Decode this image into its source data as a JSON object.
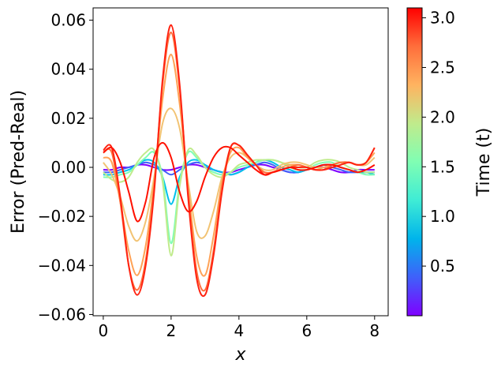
{
  "chart_data": {
    "type": "line",
    "xlabel": "x",
    "ylabel": "Error (Pred-Real)",
    "xlim": [
      -0.3,
      8.4
    ],
    "ylim": [
      -0.0605,
      0.065
    ],
    "xticks": [
      0,
      2,
      4,
      6,
      8
    ],
    "xtick_labels": [
      "0",
      "2",
      "4",
      "6",
      "8"
    ],
    "yticks": [
      -0.06,
      -0.04,
      -0.02,
      0.0,
      0.02,
      0.04,
      0.06
    ],
    "ytick_labels": [
      "−0.06",
      "−0.04",
      "−0.02",
      "0.00",
      "0.02",
      "0.04",
      "0.06"
    ],
    "x_sample": [
      0,
      0.25,
      0.5,
      0.75,
      1.0,
      1.25,
      1.5,
      1.75,
      2.0,
      2.25,
      2.5,
      2.75,
      3.0,
      3.25,
      3.5,
      3.75,
      4.0,
      4.25,
      4.5,
      4.75,
      5.0,
      5.25,
      5.5,
      5.75,
      6.0,
      6.25,
      6.5,
      6.75,
      7.0,
      7.25,
      7.5,
      7.75,
      8.0
    ],
    "series": [
      {
        "t": 0.1,
        "color": "#7f00ff",
        "values": [
          -0.001,
          -0.001,
          0.0,
          0.0,
          0.001,
          0.001,
          0.0,
          -0.001,
          -0.001,
          0.0,
          0.001,
          0.001,
          0.0,
          -0.001,
          -0.002,
          -0.002,
          -0.001,
          0.0,
          0.001,
          0.001,
          0.0,
          -0.001,
          -0.002,
          -0.002,
          -0.001,
          0.0,
          0.0,
          -0.001,
          -0.002,
          -0.002,
          -0.001,
          -0.001,
          -0.001
        ]
      },
      {
        "t": 0.5,
        "color": "#3f60fa",
        "values": [
          -0.002,
          -0.002,
          -0.001,
          0.0,
          0.001,
          0.002,
          0.001,
          -0.001,
          -0.003,
          -0.001,
          0.001,
          0.002,
          0.001,
          -0.001,
          -0.002,
          -0.003,
          -0.002,
          0.0,
          0.001,
          0.002,
          0.001,
          -0.001,
          -0.002,
          -0.002,
          -0.001,
          0.0,
          0.001,
          0.0,
          -0.001,
          -0.002,
          -0.002,
          -0.002,
          -0.002
        ]
      },
      {
        "t": 1.0,
        "color": "#00c0eb",
        "values": [
          -0.003,
          -0.003,
          -0.002,
          -0.001,
          0.001,
          0.003,
          0.002,
          -0.004,
          -0.015,
          -0.004,
          0.002,
          0.003,
          0.001,
          -0.001,
          -0.002,
          -0.003,
          -0.002,
          0.0,
          0.002,
          0.003,
          0.002,
          0.0,
          -0.001,
          -0.002,
          -0.001,
          0.0,
          0.001,
          0.001,
          0.0,
          -0.001,
          -0.002,
          -0.002,
          -0.003
        ]
      },
      {
        "t": 1.5,
        "color": "#80feb3",
        "values": [
          -0.004,
          -0.004,
          -0.003,
          -0.002,
          0.001,
          0.004,
          0.006,
          -0.004,
          -0.031,
          -0.006,
          0.006,
          0.004,
          0.0,
          -0.002,
          -0.003,
          -0.002,
          0.0,
          0.001,
          0.002,
          0.003,
          0.003,
          0.002,
          0.0,
          -0.001,
          -0.001,
          0.001,
          0.002,
          0.002,
          0.0,
          -0.001,
          -0.002,
          -0.003,
          -0.003
        ]
      },
      {
        "t": 2.0,
        "color": "#c0eb8c",
        "values": [
          -0.002,
          -0.005,
          -0.006,
          -0.004,
          0.002,
          0.006,
          0.007,
          -0.006,
          -0.036,
          -0.008,
          0.007,
          0.005,
          0.0,
          -0.003,
          -0.004,
          -0.002,
          0.001,
          0.002,
          0.003,
          0.003,
          0.003,
          0.002,
          0.001,
          0.0,
          0.0,
          0.002,
          0.003,
          0.003,
          0.002,
          0.0,
          -0.001,
          -0.002,
          -0.002
        ]
      },
      {
        "t": 2.25,
        "color": "#f2c373",
        "values": [
          0.002,
          -0.003,
          -0.012,
          -0.024,
          -0.03,
          -0.022,
          -0.004,
          0.018,
          0.024,
          0.016,
          -0.006,
          -0.026,
          -0.028,
          -0.018,
          -0.004,
          0.004,
          0.006,
          0.004,
          0.001,
          -0.001,
          -0.001,
          0.001,
          0.002,
          0.002,
          0.001,
          0.0,
          0.0,
          0.001,
          0.002,
          0.002,
          0.001,
          0.001,
          0.004
        ]
      },
      {
        "t": 2.5,
        "color": "#ffa256",
        "values": [
          0.004,
          0.002,
          -0.014,
          -0.034,
          -0.044,
          -0.032,
          -0.006,
          0.028,
          0.046,
          0.026,
          -0.008,
          -0.036,
          -0.044,
          -0.028,
          -0.006,
          0.006,
          0.008,
          0.004,
          0.001,
          -0.002,
          -0.002,
          0.0,
          0.001,
          0.001,
          0.0,
          -0.001,
          0.0,
          0.001,
          0.002,
          0.002,
          0.001,
          0.002,
          0.006
        ]
      },
      {
        "t": 2.8,
        "color": "#ff6e3b",
        "values": [
          0.006,
          0.006,
          -0.014,
          -0.04,
          -0.05,
          -0.038,
          -0.008,
          0.034,
          0.055,
          0.032,
          -0.01,
          -0.042,
          -0.05,
          -0.034,
          -0.008,
          0.008,
          0.009,
          0.005,
          0.001,
          -0.002,
          -0.002,
          -0.001,
          0.0,
          0.001,
          0.0,
          -0.001,
          -0.001,
          0.001,
          0.002,
          0.002,
          0.001,
          0.002,
          0.008
        ]
      },
      {
        "t": 3.1,
        "color": "#ff2311",
        "values": [
          0.007,
          0.008,
          -0.012,
          -0.04,
          -0.052,
          -0.04,
          -0.01,
          0.036,
          0.058,
          0.034,
          -0.012,
          -0.045,
          -0.052,
          -0.036,
          -0.01,
          0.008,
          0.009,
          0.005,
          0.001,
          -0.003,
          -0.002,
          -0.001,
          0.0,
          0.0,
          0.0,
          -0.001,
          -0.001,
          0.0,
          0.001,
          0.002,
          0.001,
          0.002,
          0.008
        ]
      },
      {
        "t": 3.05,
        "color": "#ff1100",
        "values": [
          0.006,
          0.008,
          0.002,
          -0.01,
          -0.022,
          -0.014,
          0.004,
          0.01,
          0.004,
          -0.01,
          -0.018,
          -0.014,
          -0.004,
          0.004,
          0.008,
          0.008,
          0.005,
          0.002,
          -0.001,
          -0.003,
          -0.002,
          -0.001,
          0.0,
          -0.001,
          -0.001,
          0.0,
          0.001,
          0.001,
          0.0,
          -0.001,
          -0.002,
          -0.001,
          0.001
        ]
      }
    ],
    "colorbar": {
      "label": "Time (t)",
      "range": [
        0.0,
        3.1
      ],
      "ticks": [
        0.5,
        1.0,
        1.5,
        2.0,
        2.5,
        3.0
      ],
      "tick_labels": [
        "0.5",
        "1.0",
        "1.5",
        "2.0",
        "2.5",
        "3.0"
      ],
      "colormap": "rainbow"
    }
  }
}
